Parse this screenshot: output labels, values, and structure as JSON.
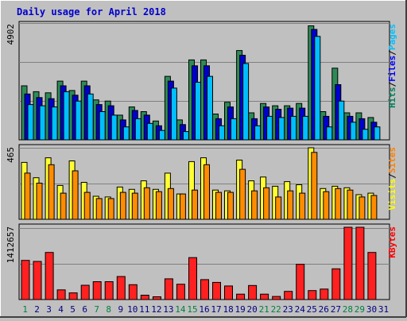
{
  "chart_data": {
    "type": "bar",
    "title": "Daily usage for April 2018",
    "days": [
      "1",
      "2",
      "3",
      "4",
      "5",
      "6",
      "7",
      "8",
      "9",
      "10",
      "11",
      "12",
      "13",
      "14",
      "15",
      "16",
      "17",
      "18",
      "19",
      "20",
      "21",
      "22",
      "23",
      "24",
      "25",
      "26",
      "27",
      "28",
      "29",
      "30",
      "31"
    ],
    "weekend_days": [
      "1",
      "7",
      "8",
      "14",
      "15",
      "21",
      "22",
      "28",
      "29"
    ],
    "panels": [
      {
        "id": "hits",
        "ymax_label": "4902",
        "ymax": 4902,
        "legend": [
          {
            "text": "Hits",
            "color": "#00805c"
          },
          {
            "text": "/",
            "color": "#000000"
          },
          {
            "text": "Files",
            "color": "#0000ff"
          },
          {
            "text": "/",
            "color": "#000000"
          },
          {
            "text": "Pages",
            "color": "#00c0ff"
          }
        ],
        "series": [
          {
            "name": "Hits",
            "color": "#2e8b57",
            "values": [
              2300,
              2050,
              2000,
              2500,
              2100,
              2500,
              1700,
              1650,
              1050,
              1400,
              1200,
              800,
              2700,
              850,
              3400,
              3400,
              1100,
              1600,
              3800,
              1150,
              1550,
              1450,
              1450,
              1550,
              4850,
              1200,
              3050,
              1150,
              1150,
              950,
              0
            ]
          },
          {
            "name": "Files",
            "color": "#0000cd",
            "values": [
              1950,
              1800,
              1750,
              2300,
              1900,
              2300,
              1500,
              1450,
              850,
              1250,
              1050,
              600,
              2500,
              650,
              3150,
              3150,
              900,
              1400,
              3600,
              900,
              1400,
              1300,
              1350,
              1350,
              4700,
              1000,
              2350,
              1000,
              900,
              750,
              0
            ]
          },
          {
            "name": "Pages",
            "color": "#00bfff",
            "values": [
              1500,
              1450,
              1400,
              2050,
              1650,
              1950,
              1200,
              1050,
              550,
              900,
              700,
              400,
              2200,
              350,
              2450,
              2700,
              600,
              900,
              3250,
              600,
              1000,
              950,
              1000,
              1000,
              4400,
              550,
              1650,
              750,
              450,
              550,
              0
            ]
          }
        ]
      },
      {
        "id": "visits",
        "ymax_label": "465",
        "ymax": 465,
        "legend": [
          {
            "text": "Visits",
            "color": "#ffff00"
          },
          {
            "text": "/",
            "color": "#000000"
          },
          {
            "text": "Sites",
            "color": "#ff8000"
          }
        ],
        "series": [
          {
            "name": "Visits",
            "color": "#ffff33",
            "values": [
              370,
              270,
              400,
              220,
              380,
              240,
              150,
              145,
              210,
              195,
              250,
              195,
              300,
              165,
              375,
              400,
              190,
              185,
              385,
              250,
              275,
              215,
              245,
              225,
              465,
              200,
              215,
              205,
              160,
              170,
              0
            ]
          },
          {
            "name": "Sites",
            "color": "#ff8c00",
            "values": [
              300,
              235,
              355,
              170,
              315,
              175,
              135,
              135,
              175,
              170,
              205,
              180,
              200,
              165,
              190,
              355,
              175,
              175,
              325,
              185,
              205,
              145,
              185,
              170,
              435,
              180,
              200,
              190,
              145,
              155,
              0
            ]
          }
        ]
      },
      {
        "id": "kbytes",
        "ymax_label": "1412657",
        "ymax": 1412657,
        "legend": [
          {
            "text": "KBytes",
            "color": "#ff0000"
          }
        ],
        "series": [
          {
            "name": "KBytes",
            "color": "#ff2020",
            "values": [
              765000,
              745000,
              920000,
              190000,
              130000,
              280000,
              350000,
              350000,
              450000,
              290000,
              85000,
              55000,
              405000,
              300000,
              820000,
              390000,
              335000,
              265000,
              105000,
              275000,
              105000,
              60000,
              160000,
              690000,
              175000,
              205000,
              600000,
              1412657,
              1412657,
              920000,
              0
            ]
          }
        ]
      }
    ]
  }
}
